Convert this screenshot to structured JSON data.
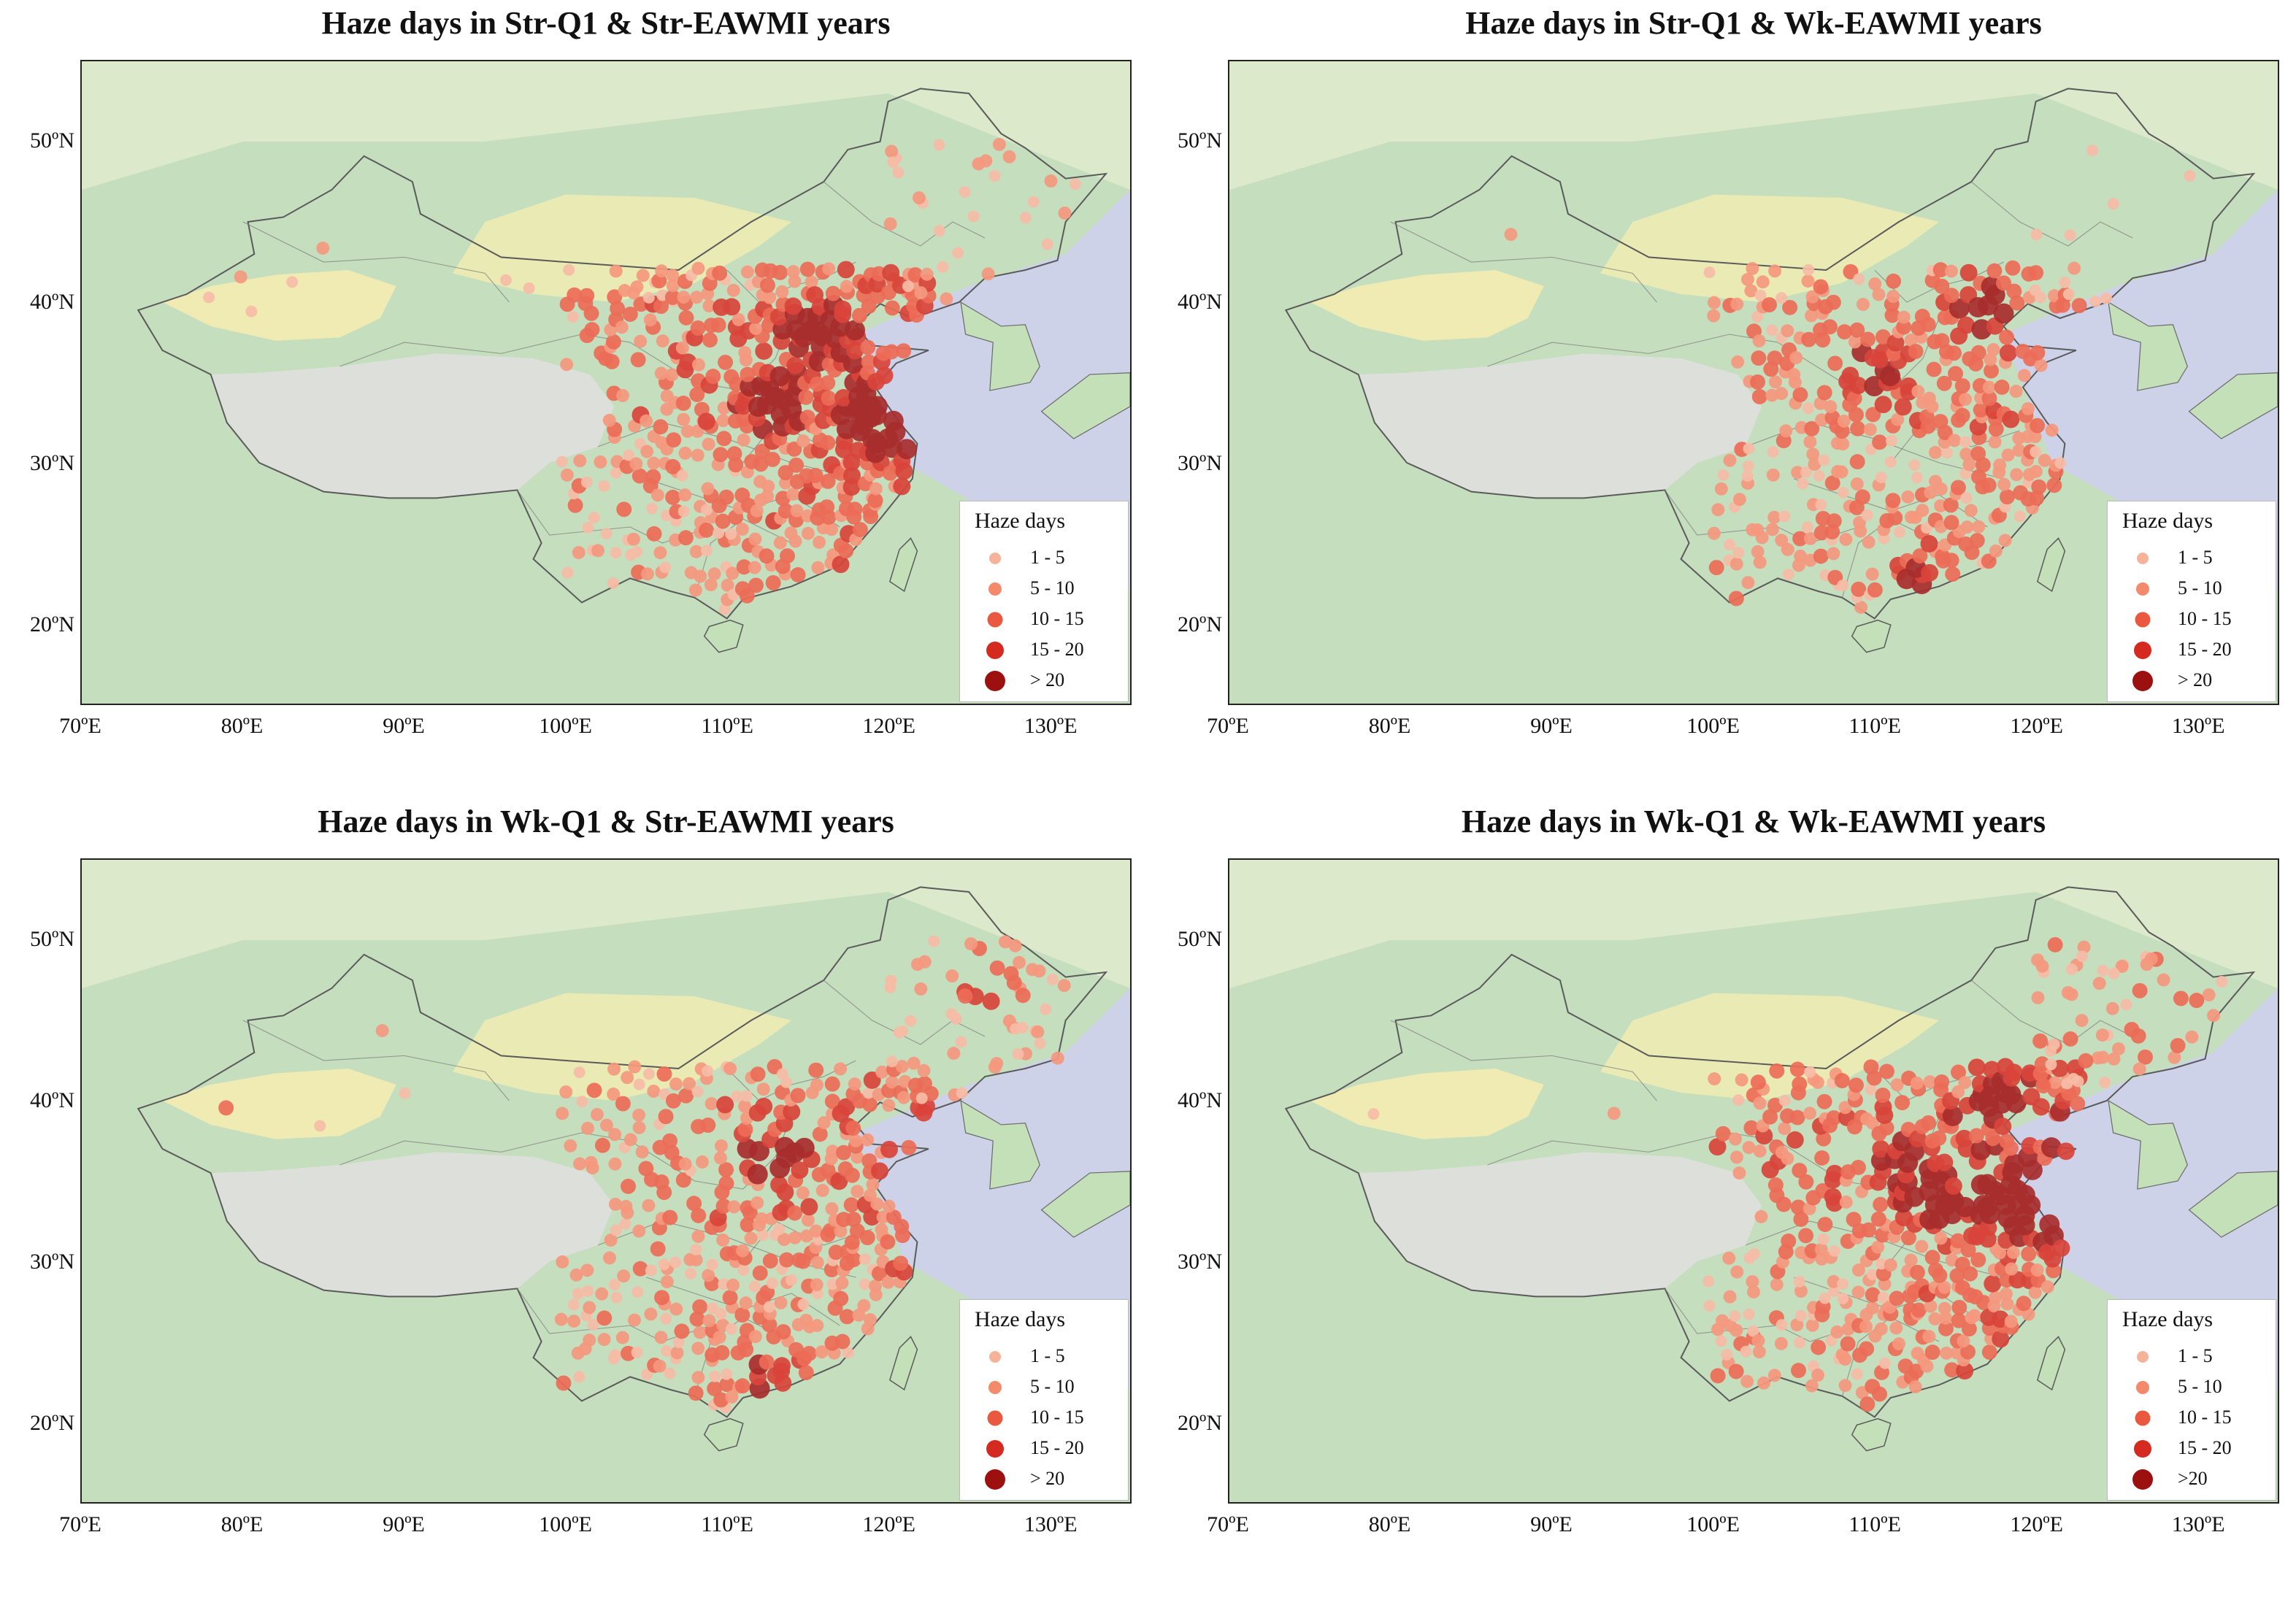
{
  "panels": [
    {
      "title": "Haze days in Str-Q1 & Str-EAWMI years",
      "legend": {
        "title": "Haze days",
        "classes": [
          "1 - 5",
          "5 - 10",
          "10 - 15",
          "15 - 20",
          "> 20"
        ]
      },
      "station_pattern": "widespread; darkest over North China Plain and east coast",
      "hot_spots": [
        [
          118.5,
          32.5
        ],
        [
          120.0,
          33.0
        ],
        [
          113.0,
          34.0
        ],
        [
          116.0,
          38.5
        ]
      ]
    },
    {
      "title": "Haze days in Str-Q1 & Wk-EAWMI years",
      "legend": {
        "title": "Haze days",
        "classes": [
          "1 - 5",
          "5 - 10",
          "10 - 15",
          "15 - 20",
          "> 20"
        ]
      },
      "station_pattern": "lighter overall; darker near Beijing and Pearl River Delta",
      "hot_spots": [
        [
          116.5,
          40.0
        ],
        [
          112.5,
          22.8
        ],
        [
          110.0,
          35.5
        ]
      ]
    },
    {
      "title": "Haze days in Wk-Q1 & Str-EAWMI years",
      "legend": {
        "title": "Haze days",
        "classes": [
          "1 - 5",
          "5 - 10",
          "10 - 15",
          "15 - 20",
          "> 20"
        ]
      },
      "station_pattern": "moderate; dark cluster in Northeast and central China",
      "hot_spots": [
        [
          126.0,
          47.0
        ],
        [
          113.0,
          37.0
        ],
        [
          113.0,
          22.5
        ],
        [
          80.5,
          41.0
        ]
      ]
    },
    {
      "title": "Haze days in Wk-Q1 & Wk-EAWMI years",
      "legend": {
        "title": "Haze days",
        "classes": [
          "1 - 5",
          "5 - 10",
          "10 - 15",
          "15 - 20",
          ">20"
        ]
      },
      "station_pattern": "most severe; dense dark band across North China Plain and Northeast",
      "hot_spots": [
        [
          117.0,
          34.0
        ],
        [
          120.0,
          32.5
        ],
        [
          113.0,
          35.0
        ],
        [
          128.0,
          46.0
        ],
        [
          118.0,
          41.0
        ]
      ]
    }
  ],
  "axes": {
    "lon_ticks": [
      "70ºE",
      "80ºE",
      "90ºE",
      "100ºE",
      "110ºE",
      "120ºE",
      "130ºE"
    ],
    "lat_ticks": [
      "20ºN",
      "30ºN",
      "40ºN",
      "50ºN"
    ],
    "lon_values": [
      70,
      80,
      90,
      100,
      110,
      120,
      130
    ],
    "lat_values": [
      20,
      30,
      40,
      50
    ],
    "lon_range": [
      70,
      135
    ],
    "lat_range": [
      15,
      55
    ]
  },
  "class_colors": [
    "#f6b39a",
    "#f48a6c",
    "#ea5840",
    "#d42a20",
    "#9c1010"
  ],
  "basemap_colors": {
    "land": "#bcdcb0",
    "plateau": "#d9dbd6",
    "desert": "#eee9a8",
    "ocean": "#c8cce6"
  }
}
